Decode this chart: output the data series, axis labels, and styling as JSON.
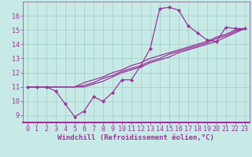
{
  "xlabel": "Windchill (Refroidissement éolien,°C)",
  "bg_color": "#c8eae6",
  "plot_bg_color": "#c8eae6",
  "line_color": "#993399",
  "border_color": "#993399",
  "x_min": -0.5,
  "x_max": 23.5,
  "y_min": 8.5,
  "y_max": 17.0,
  "x_ticks": [
    0,
    1,
    2,
    3,
    4,
    5,
    6,
    7,
    8,
    9,
    10,
    11,
    12,
    13,
    14,
    15,
    16,
    17,
    18,
    19,
    20,
    21,
    22,
    23
  ],
  "y_ticks": [
    9,
    10,
    11,
    12,
    13,
    14,
    15,
    16
  ],
  "series1": [
    11.0,
    11.0,
    11.0,
    10.7,
    9.8,
    8.9,
    9.3,
    10.3,
    10.0,
    10.6,
    11.5,
    11.5,
    12.5,
    13.7,
    16.5,
    16.6,
    16.4,
    15.3,
    14.8,
    14.3,
    14.2,
    15.2,
    15.1,
    15.1
  ],
  "series2": [
    11.0,
    11.0,
    11.0,
    11.0,
    11.0,
    11.0,
    11.3,
    11.5,
    11.7,
    12.0,
    12.2,
    12.5,
    12.7,
    13.0,
    13.2,
    13.4,
    13.6,
    13.8,
    14.0,
    14.2,
    14.5,
    14.7,
    15.0,
    15.1
  ],
  "series3": [
    11.0,
    11.0,
    11.0,
    11.0,
    11.0,
    11.0,
    11.1,
    11.3,
    11.6,
    11.8,
    12.1,
    12.3,
    12.5,
    12.8,
    13.0,
    13.3,
    13.5,
    13.7,
    13.9,
    14.1,
    14.4,
    14.6,
    14.9,
    15.1
  ],
  "series4": [
    11.0,
    11.0,
    11.0,
    11.0,
    11.0,
    11.0,
    11.0,
    11.2,
    11.4,
    11.7,
    12.0,
    12.2,
    12.4,
    12.7,
    12.9,
    13.1,
    13.4,
    13.6,
    13.8,
    14.0,
    14.2,
    14.5,
    14.8,
    15.1
  ],
  "xlabel_fontsize": 6.5,
  "tick_fontsize": 6,
  "lw": 0.9,
  "marker_size": 2.2
}
